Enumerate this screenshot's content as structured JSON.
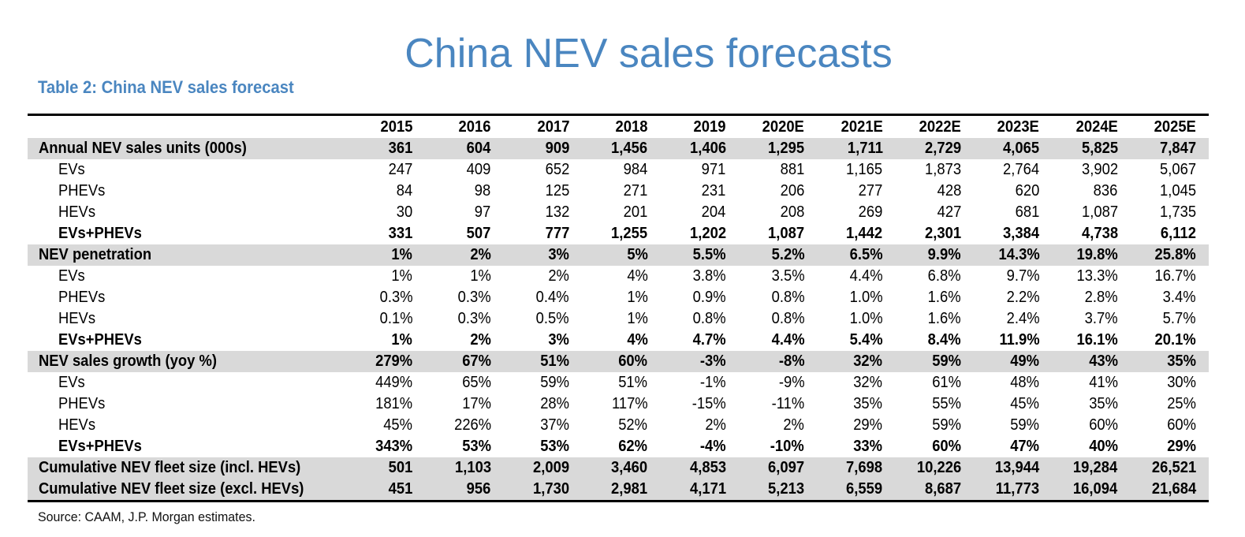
{
  "page_title": "China NEV sales forecasts",
  "table_caption": "Table 2: China NEV sales forecast",
  "table": {
    "columns": [
      "2015",
      "2016",
      "2017",
      "2018",
      "2019",
      "2020E",
      "2021E",
      "2022E",
      "2023E",
      "2024E",
      "2025E"
    ],
    "rows": [
      {
        "label": "Annual NEV sales units (000s)",
        "style": "main",
        "values": [
          "361",
          "604",
          "909",
          "1,456",
          "1,406",
          "1,295",
          "1,711",
          "2,729",
          "4,065",
          "5,825",
          "7,847"
        ]
      },
      {
        "label": "EVs",
        "style": "sub",
        "values": [
          "247",
          "409",
          "652",
          "984",
          "971",
          "881",
          "1,165",
          "1,873",
          "2,764",
          "3,902",
          "5,067"
        ]
      },
      {
        "label": "PHEVs",
        "style": "sub",
        "values": [
          "84",
          "98",
          "125",
          "271",
          "231",
          "206",
          "277",
          "428",
          "620",
          "836",
          "1,045"
        ]
      },
      {
        "label": "HEVs",
        "style": "sub",
        "values": [
          "30",
          "97",
          "132",
          "201",
          "204",
          "208",
          "269",
          "427",
          "681",
          "1,087",
          "1,735"
        ]
      },
      {
        "label": "EVs+PHEVs",
        "style": "total",
        "values": [
          "331",
          "507",
          "777",
          "1,255",
          "1,202",
          "1,087",
          "1,442",
          "2,301",
          "3,384",
          "4,738",
          "6,112"
        ]
      },
      {
        "label": "NEV penetration",
        "style": "main",
        "values": [
          "1%",
          "2%",
          "3%",
          "5%",
          "5.5%",
          "5.2%",
          "6.5%",
          "9.9%",
          "14.3%",
          "19.8%",
          "25.8%"
        ]
      },
      {
        "label": "EVs",
        "style": "sub",
        "values": [
          "1%",
          "1%",
          "2%",
          "4%",
          "3.8%",
          "3.5%",
          "4.4%",
          "6.8%",
          "9.7%",
          "13.3%",
          "16.7%"
        ]
      },
      {
        "label": "PHEVs",
        "style": "sub",
        "values": [
          "0.3%",
          "0.3%",
          "0.4%",
          "1%",
          "0.9%",
          "0.8%",
          "1.0%",
          "1.6%",
          "2.2%",
          "2.8%",
          "3.4%"
        ]
      },
      {
        "label": "HEVs",
        "style": "sub",
        "values": [
          "0.1%",
          "0.3%",
          "0.5%",
          "1%",
          "0.8%",
          "0.8%",
          "1.0%",
          "1.6%",
          "2.4%",
          "3.7%",
          "5.7%"
        ]
      },
      {
        "label": "EVs+PHEVs",
        "style": "total",
        "values": [
          "1%",
          "2%",
          "3%",
          "4%",
          "4.7%",
          "4.4%",
          "5.4%",
          "8.4%",
          "11.9%",
          "16.1%",
          "20.1%"
        ]
      },
      {
        "label": "NEV sales growth (yoy %)",
        "style": "main",
        "values": [
          "279%",
          "67%",
          "51%",
          "60%",
          "-3%",
          "-8%",
          "32%",
          "59%",
          "49%",
          "43%",
          "35%"
        ]
      },
      {
        "label": "EVs",
        "style": "sub",
        "values": [
          "449%",
          "65%",
          "59%",
          "51%",
          "-1%",
          "-9%",
          "32%",
          "61%",
          "48%",
          "41%",
          "30%"
        ]
      },
      {
        "label": "PHEVs",
        "style": "sub",
        "values": [
          "181%",
          "17%",
          "28%",
          "117%",
          "-15%",
          "-11%",
          "35%",
          "55%",
          "45%",
          "35%",
          "25%"
        ]
      },
      {
        "label": "HEVs",
        "style": "sub",
        "values": [
          "45%",
          "226%",
          "37%",
          "52%",
          "2%",
          "2%",
          "29%",
          "59%",
          "59%",
          "60%",
          "60%"
        ]
      },
      {
        "label": "EVs+PHEVs",
        "style": "total",
        "values": [
          "343%",
          "53%",
          "53%",
          "62%",
          "-4%",
          "-10%",
          "33%",
          "60%",
          "47%",
          "40%",
          "29%"
        ]
      },
      {
        "label": "Cumulative NEV fleet size (incl. HEVs)",
        "style": "main",
        "values": [
          "501",
          "1,103",
          "2,009",
          "3,460",
          "4,853",
          "6,097",
          "7,698",
          "10,226",
          "13,944",
          "19,284",
          "26,521"
        ]
      },
      {
        "label": "Cumulative NEV fleet size (excl. HEVs)",
        "style": "main",
        "values": [
          "451",
          "956",
          "1,730",
          "2,981",
          "4,171",
          "5,213",
          "6,559",
          "8,687",
          "11,773",
          "16,094",
          "21,684"
        ]
      }
    ]
  },
  "source": "Source: CAAM, J.P. Morgan estimates.",
  "colors": {
    "title_blue": "#4a86c0",
    "row_shade": "#d9d9d9"
  }
}
